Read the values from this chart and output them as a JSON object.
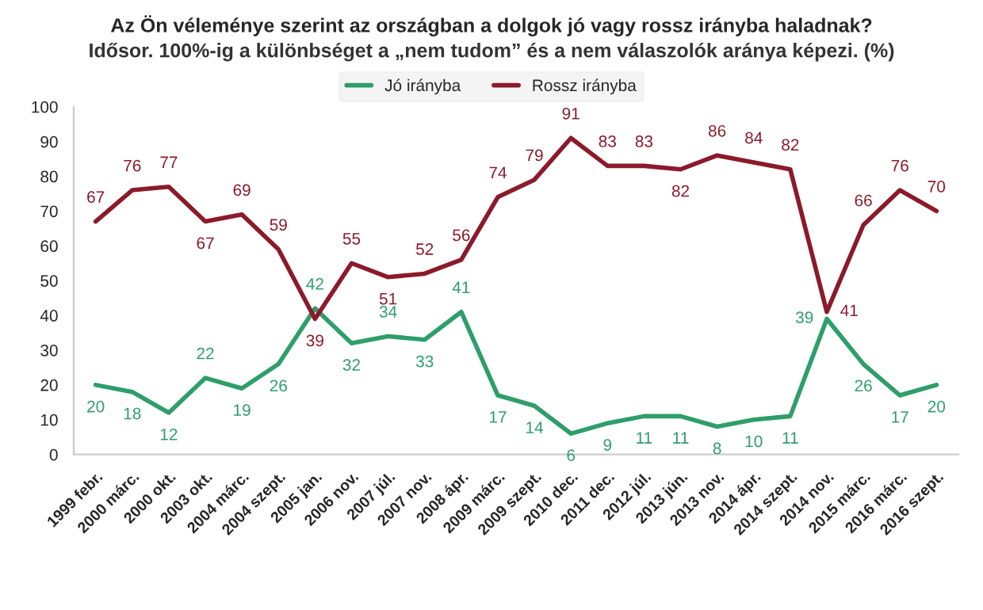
{
  "chart_data": {
    "type": "line",
    "title": "Az Ön véleménye szerint az országban a dolgok jó vagy rossz irányba haladnak?",
    "subtitle": "Idősor. 100%-ig a különbséget a „nem tudom” és a nem válaszolók aránya képezi. (%)",
    "categories": [
      "1999 febr.",
      "2000 márc.",
      "2000 okt.",
      "2003 okt.",
      "2004 márc.",
      "2004 szept.",
      "2005 jan.",
      "2006 nov.",
      "2007 júl.",
      "2007 nov.",
      "2008 ápr.",
      "2009 márc.",
      "2009 szept.",
      "2010 dec.",
      "2011 dec.",
      "2012 júl.",
      "2013 jún.",
      "2013 nov.",
      "2014 ápr.",
      "2014 szept.",
      "2014 nov.",
      "2015 márc.",
      "2016 márc.",
      "2016 szept."
    ],
    "series": [
      {
        "name": "Jó irányba",
        "color": "#2e9e6a",
        "values": [
          20,
          18,
          12,
          22,
          19,
          26,
          42,
          32,
          34,
          33,
          41,
          17,
          14,
          6,
          9,
          11,
          11,
          8,
          10,
          11,
          39,
          26,
          17,
          20
        ]
      },
      {
        "name": "Rossz irányba",
        "color": "#8b1a2b",
        "values": [
          67,
          76,
          77,
          67,
          69,
          59,
          39,
          55,
          51,
          52,
          56,
          74,
          79,
          91,
          83,
          83,
          82,
          86,
          84,
          82,
          41,
          66,
          76,
          70
        ]
      }
    ],
    "ylim": [
      0,
      100
    ],
    "yticks": [
      0,
      10,
      20,
      30,
      40,
      50,
      60,
      70,
      80,
      90,
      100
    ],
    "data_labels": true,
    "legend": "top",
    "grid": false,
    "line_style": "solid",
    "marker": "none"
  }
}
